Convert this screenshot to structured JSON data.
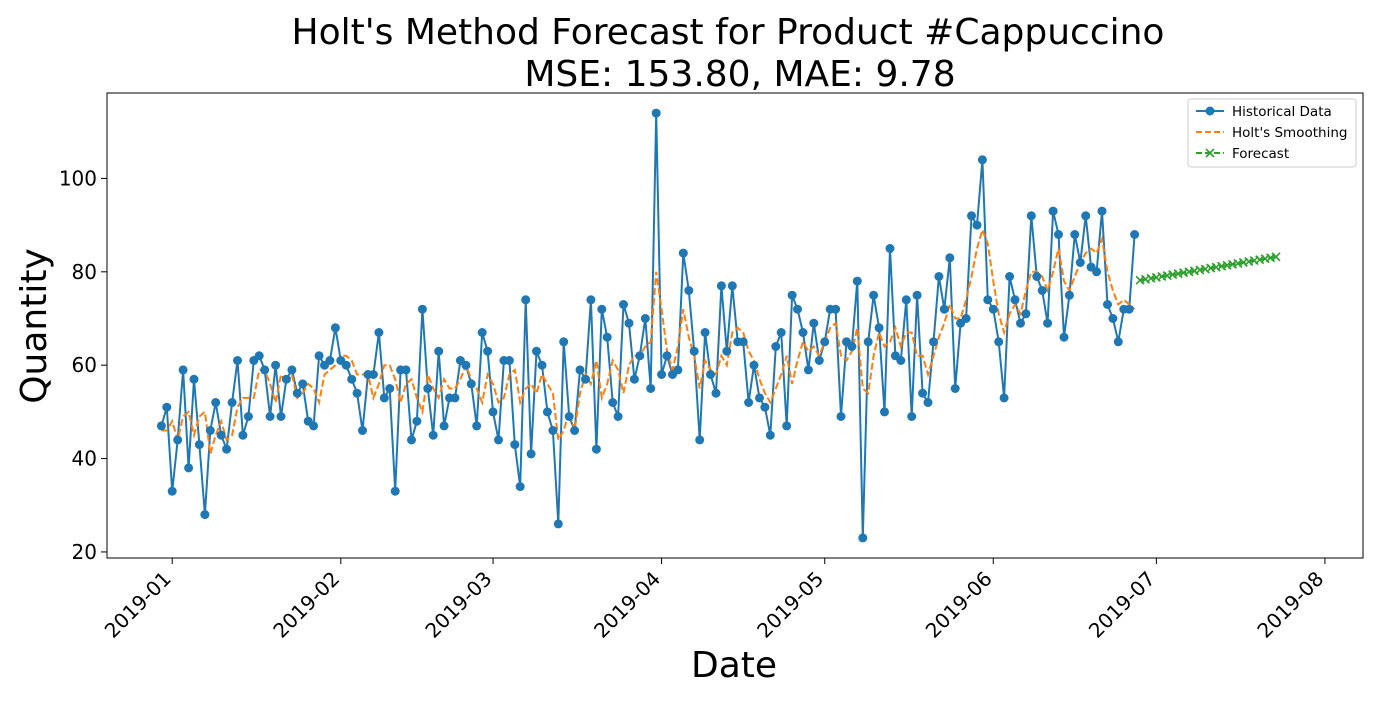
{
  "chart_data": {
    "type": "line",
    "title_line1": "Holt's Method Forecast for Product #Cappuccino",
    "title_line2": "MSE: 153.80, MAE: 9.78",
    "xlabel": "Date",
    "ylabel": "Quantity",
    "x_range": [
      "2018-12-20",
      "2019-08-08"
    ],
    "ylim": [
      18.7,
      118.3
    ],
    "x_ticks": [
      "2019-01-01",
      "2019-02-01",
      "2019-03-01",
      "2019-04-01",
      "2019-05-01",
      "2019-06-01",
      "2019-07-01",
      "2019-08-01"
    ],
    "x_tick_labels": [
      "2019-01",
      "2019-02",
      "2019-03",
      "2019-04",
      "2019-05",
      "2019-06",
      "2019-07",
      "2019-08"
    ],
    "y_ticks": [
      20,
      40,
      60,
      80,
      100
    ],
    "y_tick_labels": [
      "20",
      "40",
      "60",
      "80",
      "100"
    ],
    "grid": false,
    "legend_position": "top-right",
    "colors": {
      "historical": "#1f77b4",
      "smoothing": "#ff7f0e",
      "forecast": "#2ca02c"
    },
    "series": [
      {
        "name": "Historical Data",
        "start_date": "2018-12-30",
        "step_days": 1,
        "values": [
          47,
          51,
          33,
          44,
          59,
          38,
          57,
          43,
          28,
          46,
          52,
          45,
          42,
          52,
          61,
          45,
          49,
          61,
          62,
          59,
          49,
          60,
          49,
          57,
          59,
          54,
          56,
          48,
          47,
          62,
          60,
          61,
          68,
          61,
          60,
          57,
          54,
          46,
          58,
          58,
          67,
          53,
          55,
          33,
          59,
          59,
          44,
          48,
          72,
          55,
          45,
          63,
          47,
          53,
          53,
          61,
          60,
          56,
          47,
          67,
          63,
          50,
          44,
          61,
          61,
          43,
          34,
          74,
          41,
          63,
          60,
          50,
          46,
          26,
          65,
          49,
          46,
          59,
          57,
          74,
          42,
          72,
          66,
          52,
          49,
          73,
          69,
          57,
          62,
          70,
          55,
          114,
          58,
          62,
          58,
          59,
          84,
          76,
          63,
          44,
          67,
          58,
          54,
          77,
          63,
          77,
          65,
          65,
          52,
          60,
          53,
          51,
          45,
          64,
          67,
          47,
          75,
          72,
          67,
          59,
          69,
          61,
          65,
          72,
          72,
          49,
          65,
          64,
          78,
          23,
          65,
          75,
          68,
          50,
          85,
          62,
          61,
          74,
          49,
          75,
          54,
          52,
          65,
          79,
          72,
          83,
          55,
          69,
          70,
          92,
          90,
          104,
          74,
          72,
          65,
          53,
          79,
          74,
          69,
          71,
          92,
          79,
          76,
          69,
          93,
          88,
          66,
          75,
          88,
          82,
          92,
          81,
          80,
          93,
          73,
          70,
          65,
          72,
          72,
          88
        ]
      },
      {
        "name": "Holt's Smoothing",
        "start_date": "2018-12-30",
        "step_days": 1,
        "values": [
          46,
          46,
          48,
          44,
          49,
          50,
          45,
          49,
          50,
          41,
          45,
          48,
          44,
          45,
          51,
          53,
          53,
          53,
          59,
          59,
          56,
          52,
          58,
          56,
          58,
          53,
          54,
          56,
          55,
          52,
          58,
          59,
          60,
          62,
          62,
          61,
          58,
          58,
          58,
          53,
          56,
          60,
          60,
          57,
          52,
          56,
          57,
          53,
          50,
          58,
          55,
          53,
          57,
          55,
          55,
          57,
          60,
          57,
          55,
          52,
          58,
          56,
          52,
          53,
          58,
          59,
          52,
          55,
          56,
          54,
          58,
          56,
          54,
          44,
          46,
          50,
          46,
          54,
          58,
          56,
          61,
          53,
          56,
          61,
          59,
          54,
          60,
          62,
          62,
          64,
          65,
          80,
          72,
          63,
          59,
          64,
          72,
          66,
          62,
          55,
          61,
          59,
          58,
          62,
          60,
          67,
          68,
          67,
          63,
          61,
          57,
          54,
          52,
          55,
          58,
          62,
          56,
          61,
          65,
          63,
          64,
          62,
          65,
          68,
          69,
          62,
          61,
          63,
          68,
          55,
          54,
          62,
          67,
          64,
          65,
          68,
          64,
          67,
          67,
          62,
          62,
          58,
          62,
          66,
          69,
          73,
          70,
          70,
          74,
          79,
          85,
          89,
          86,
          78,
          71,
          67,
          71,
          73,
          71,
          76,
          80,
          80,
          79,
          76,
          80,
          85,
          78,
          76,
          79,
          82,
          84,
          85,
          84,
          87,
          80,
          76,
          73,
          74,
          73,
          72
        ]
      },
      {
        "name": "Forecast",
        "start_date": "2019-06-28",
        "step_days": 1,
        "values": [
          78.2,
          78.4,
          78.6,
          78.8,
          79.0,
          79.2,
          79.4,
          79.6,
          79.8,
          80.0,
          80.2,
          80.4,
          80.6,
          80.8,
          81.0,
          81.2,
          81.4,
          81.6,
          81.8,
          82.0,
          82.2,
          82.4,
          82.6,
          82.8,
          83.0,
          83.2
        ]
      }
    ]
  }
}
